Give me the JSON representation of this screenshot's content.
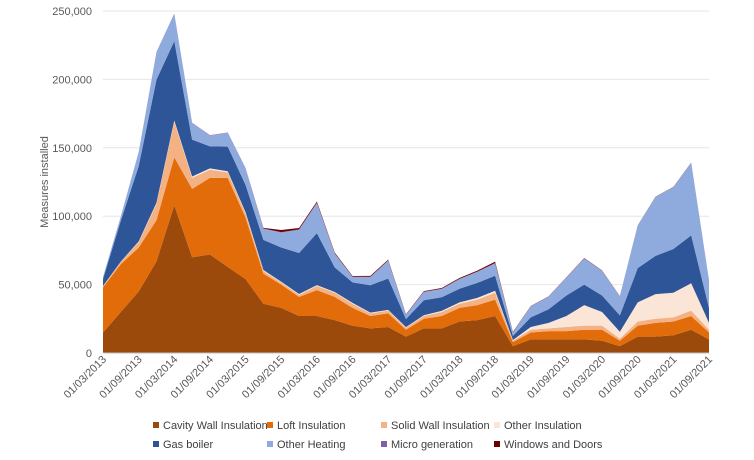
{
  "chart_data": {
    "type": "area",
    "stacked": true,
    "title": "",
    "xlabel": "",
    "ylabel": "Measures installed",
    "ylim": [
      0,
      250000
    ],
    "y_ticks": [
      0,
      50000,
      100000,
      150000,
      200000,
      250000
    ],
    "y_tick_labels": [
      "0",
      "50,000",
      "100,000",
      "150,000",
      "200,000",
      "250,000"
    ],
    "x_tick_labels": [
      "01/03/2013",
      "01/09/2013",
      "01/03/2014",
      "01/09/2014",
      "01/03/2015",
      "01/09/2015",
      "01/03/2016",
      "01/09/2016",
      "01/03/2017",
      "01/09/2017",
      "01/03/2018",
      "01/09/2018",
      "01/03/2019",
      "01/09/2019",
      "01/03/2020",
      "01/09/2020",
      "01/03/2021",
      "01/09/2021"
    ],
    "series": [
      {
        "name": "Cavity Wall Insulation",
        "color": "#9C4A0B",
        "values": [
          15000,
          30000,
          45000,
          67000,
          108000,
          70000,
          72000,
          63000,
          54000,
          36000,
          33000,
          27000,
          27000,
          24000,
          20000,
          18000,
          19000,
          12000,
          18000,
          18000,
          23000,
          24000,
          27000,
          5000,
          10000,
          10000,
          10000,
          10000,
          9000,
          5000,
          12000,
          12000,
          13000,
          17000,
          10000
        ]
      },
      {
        "name": "Loft Insulation",
        "color": "#E36C0A",
        "values": [
          33000,
          35000,
          32000,
          30000,
          35000,
          50000,
          56000,
          65000,
          45000,
          22000,
          17000,
          14000,
          19000,
          17000,
          13000,
          9000,
          10000,
          5000,
          7000,
          9000,
          10000,
          11000,
          12000,
          3000,
          5000,
          6000,
          6000,
          7000,
          8000,
          4000,
          8000,
          10000,
          10000,
          10000,
          5000
        ]
      },
      {
        "name": "Solid Wall Insulation",
        "color": "#F4B183",
        "values": [
          800,
          1500,
          4000,
          12000,
          26000,
          8000,
          6000,
          4000,
          3000,
          2000,
          1500,
          1500,
          3000,
          3000,
          3000,
          2000,
          2000,
          1500,
          2000,
          3000,
          3000,
          4000,
          5000,
          1000,
          2000,
          2000,
          3000,
          3000,
          3000,
          1500,
          3000,
          3000,
          3000,
          4000,
          2000
        ]
      },
      {
        "name": "Other Insulation",
        "color": "#FBE5D6",
        "values": [
          200,
          300,
          500,
          800,
          1000,
          1000,
          1000,
          900,
          800,
          700,
          600,
          600,
          600,
          600,
          600,
          500,
          500,
          400,
          600,
          800,
          1000,
          1300,
          1500,
          500,
          2000,
          4000,
          8000,
          15000,
          10000,
          5000,
          14000,
          18000,
          18000,
          20000,
          5000
        ]
      },
      {
        "name": "Gas boiler",
        "color": "#2E5597",
        "values": [
          5000,
          30000,
          55000,
          90000,
          58000,
          27000,
          16000,
          18000,
          20000,
          22000,
          25000,
          30000,
          38000,
          18000,
          15000,
          20000,
          23000,
          6000,
          11000,
          10000,
          10000,
          11000,
          11000,
          3000,
          7000,
          10000,
          15000,
          15000,
          12000,
          12000,
          25000,
          28000,
          32000,
          35000,
          11000
        ]
      },
      {
        "name": "Other Heating",
        "color": "#8FAADC",
        "values": [
          1500,
          3000,
          10000,
          20000,
          20000,
          12000,
          8000,
          10000,
          12000,
          8000,
          11000,
          17000,
          22000,
          10000,
          4000,
          6000,
          13000,
          3000,
          6000,
          6000,
          7000,
          8000,
          9000,
          2500,
          8000,
          9000,
          13000,
          19000,
          18000,
          14000,
          31000,
          43000,
          45000,
          53000,
          20000
        ]
      },
      {
        "name": "Micro generation",
        "color": "#7F5FAF",
        "values": [
          100,
          100,
          200,
          200,
          200,
          300,
          300,
          300,
          300,
          300,
          300,
          300,
          300,
          300,
          200,
          200,
          200,
          100,
          200,
          200,
          200,
          200,
          300,
          100,
          200,
          200,
          200,
          200,
          200,
          100,
          200,
          200,
          200,
          200,
          100
        ]
      },
      {
        "name": "Windows and Doors",
        "color": "#6B0000",
        "values": [
          0,
          0,
          0,
          0,
          0,
          0,
          0,
          0,
          0,
          500,
          1500,
          1000,
          800,
          600,
          500,
          700,
          600,
          300,
          400,
          500,
          600,
          700,
          1000,
          300,
          200,
          200,
          200,
          200,
          200,
          100,
          100,
          100,
          100,
          100,
          100
        ]
      }
    ]
  }
}
